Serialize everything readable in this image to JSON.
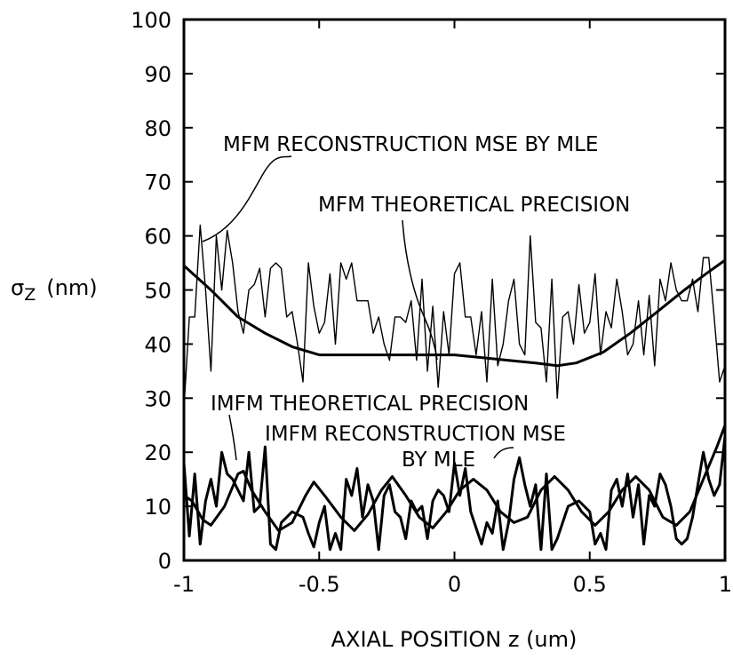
{
  "chart_data": {
    "type": "line",
    "xlabel": "AXIAL POSITION z (um)",
    "ylabel_symbol": "σ",
    "ylabel_subscript": "Z",
    "ylabel_unit": "(nm)",
    "xlim": [
      -1,
      1
    ],
    "ylim": [
      0,
      100
    ],
    "x_ticks": [
      -1,
      -0.5,
      0,
      0.5,
      1
    ],
    "x_tick_labels": [
      "-1",
      "-0.5",
      "0",
      "0.5",
      "1"
    ],
    "y_ticks": [
      0,
      10,
      20,
      30,
      40,
      50,
      60,
      70,
      80,
      90,
      100
    ],
    "y_tick_labels": [
      "0",
      "10",
      "20",
      "30",
      "40",
      "50",
      "60",
      "70",
      "80",
      "90",
      "100"
    ],
    "grid": false,
    "legend": "none",
    "annotations": {
      "mfm_mse": "MFM RECONSTRUCTION MSE BY MLE",
      "mfm_theory": "MFM THEORETICAL PRECISION",
      "imfm_theory": "IMFM THEORETICAL PRECISION",
      "imfm_mse_line1": "IMFM RECONSTRUCTION MSE",
      "imfm_mse_line2": "BY MLE"
    },
    "series": [
      {
        "key": "mfm_theory",
        "style": "thick",
        "points": [
          [
            -1,
            54.5
          ],
          [
            -0.9,
            50
          ],
          [
            -0.8,
            45
          ],
          [
            -0.7,
            42
          ],
          [
            -0.6,
            39.5
          ],
          [
            -0.5,
            38
          ],
          [
            -0.4,
            38
          ],
          [
            -0.2,
            38
          ],
          [
            0,
            38
          ],
          [
            0.1,
            37.5
          ],
          [
            0.2,
            37
          ],
          [
            0.3,
            36.5
          ],
          [
            0.38,
            36
          ],
          [
            0.45,
            36.5
          ],
          [
            0.55,
            38.5
          ],
          [
            0.65,
            42
          ],
          [
            0.75,
            46
          ],
          [
            0.85,
            50
          ],
          [
            0.93,
            53
          ],
          [
            1,
            55.5
          ]
        ]
      },
      {
        "key": "mfm_mse",
        "style": "thin",
        "points": [
          [
            -1,
            28
          ],
          [
            -0.98,
            45
          ],
          [
            -0.96,
            45
          ],
          [
            -0.94,
            62
          ],
          [
            -0.92,
            50
          ],
          [
            -0.9,
            35
          ],
          [
            -0.88,
            60
          ],
          [
            -0.86,
            50
          ],
          [
            -0.84,
            61
          ],
          [
            -0.82,
            55
          ],
          [
            -0.8,
            46
          ],
          [
            -0.78,
            42
          ],
          [
            -0.76,
            50
          ],
          [
            -0.74,
            51
          ],
          [
            -0.72,
            54
          ],
          [
            -0.7,
            45
          ],
          [
            -0.68,
            54
          ],
          [
            -0.66,
            55
          ],
          [
            -0.64,
            54
          ],
          [
            -0.62,
            45
          ],
          [
            -0.6,
            46
          ],
          [
            -0.58,
            40
          ],
          [
            -0.56,
            33
          ],
          [
            -0.54,
            55
          ],
          [
            -0.52,
            47
          ],
          [
            -0.5,
            42
          ],
          [
            -0.48,
            44
          ],
          [
            -0.46,
            53
          ],
          [
            -0.44,
            40
          ],
          [
            -0.42,
            55
          ],
          [
            -0.4,
            52
          ],
          [
            -0.38,
            55
          ],
          [
            -0.36,
            48
          ],
          [
            -0.34,
            48
          ],
          [
            -0.32,
            48
          ],
          [
            -0.3,
            42
          ],
          [
            -0.28,
            45
          ],
          [
            -0.26,
            40
          ],
          [
            -0.24,
            37
          ],
          [
            -0.22,
            45
          ],
          [
            -0.2,
            45
          ],
          [
            -0.18,
            44
          ],
          [
            -0.16,
            48
          ],
          [
            -0.14,
            37
          ],
          [
            -0.12,
            52
          ],
          [
            -0.1,
            35
          ],
          [
            -0.08,
            47
          ],
          [
            -0.06,
            32
          ],
          [
            -0.04,
            46
          ],
          [
            -0.02,
            38
          ],
          [
            0,
            53
          ],
          [
            0.02,
            55
          ],
          [
            0.04,
            45
          ],
          [
            0.06,
            45
          ],
          [
            0.08,
            38
          ],
          [
            0.1,
            46
          ],
          [
            0.12,
            33
          ],
          [
            0.14,
            52
          ],
          [
            0.16,
            36
          ],
          [
            0.18,
            40
          ],
          [
            0.2,
            48
          ],
          [
            0.22,
            52
          ],
          [
            0.24,
            40
          ],
          [
            0.26,
            38
          ],
          [
            0.28,
            60
          ],
          [
            0.3,
            44
          ],
          [
            0.32,
            43
          ],
          [
            0.34,
            33
          ],
          [
            0.36,
            52
          ],
          [
            0.38,
            30
          ],
          [
            0.4,
            45
          ],
          [
            0.42,
            46
          ],
          [
            0.44,
            40
          ],
          [
            0.46,
            51
          ],
          [
            0.48,
            42
          ],
          [
            0.5,
            44
          ],
          [
            0.52,
            53
          ],
          [
            0.54,
            38
          ],
          [
            0.56,
            46
          ],
          [
            0.58,
            43
          ],
          [
            0.6,
            52
          ],
          [
            0.62,
            46
          ],
          [
            0.64,
            38
          ],
          [
            0.66,
            40
          ],
          [
            0.68,
            48
          ],
          [
            0.7,
            38
          ],
          [
            0.72,
            49
          ],
          [
            0.74,
            36
          ],
          [
            0.76,
            52
          ],
          [
            0.78,
            48
          ],
          [
            0.8,
            55
          ],
          [
            0.82,
            50
          ],
          [
            0.84,
            48
          ],
          [
            0.86,
            48
          ],
          [
            0.88,
            52
          ],
          [
            0.9,
            46
          ],
          [
            0.92,
            56
          ],
          [
            0.94,
            56
          ],
          [
            0.96,
            45
          ],
          [
            0.98,
            33
          ],
          [
            1,
            36
          ]
        ]
      },
      {
        "key": "imfm_theory",
        "style": "thick",
        "points": [
          [
            -1,
            12
          ],
          [
            -0.97,
            11
          ],
          [
            -0.93,
            7.5
          ],
          [
            -0.9,
            6.5
          ],
          [
            -0.85,
            10
          ],
          [
            -0.8,
            16
          ],
          [
            -0.78,
            16.5
          ],
          [
            -0.75,
            13
          ],
          [
            -0.7,
            9
          ],
          [
            -0.65,
            5.5
          ],
          [
            -0.6,
            7
          ],
          [
            -0.55,
            12
          ],
          [
            -0.52,
            14.5
          ],
          [
            -0.48,
            12
          ],
          [
            -0.42,
            8
          ],
          [
            -0.37,
            5.5
          ],
          [
            -0.32,
            8.5
          ],
          [
            -0.27,
            13
          ],
          [
            -0.23,
            15.5
          ],
          [
            -0.18,
            12
          ],
          [
            -0.13,
            8
          ],
          [
            -0.08,
            6
          ],
          [
            -0.03,
            9
          ],
          [
            0.02,
            13
          ],
          [
            0.07,
            15
          ],
          [
            0.12,
            13
          ],
          [
            0.17,
            9
          ],
          [
            0.22,
            7
          ],
          [
            0.27,
            8
          ],
          [
            0.32,
            13
          ],
          [
            0.37,
            15.5
          ],
          [
            0.42,
            13
          ],
          [
            0.47,
            9
          ],
          [
            0.52,
            6.5
          ],
          [
            0.57,
            9
          ],
          [
            0.62,
            13
          ],
          [
            0.67,
            15.5
          ],
          [
            0.72,
            13
          ],
          [
            0.77,
            8
          ],
          [
            0.82,
            6.5
          ],
          [
            0.87,
            9
          ],
          [
            0.92,
            15
          ],
          [
            0.97,
            21
          ],
          [
            1,
            25
          ]
        ]
      },
      {
        "key": "imfm_mse",
        "style": "thick",
        "points": [
          [
            -1,
            18
          ],
          [
            -0.98,
            4.5
          ],
          [
            -0.96,
            16
          ],
          [
            -0.94,
            3
          ],
          [
            -0.92,
            11
          ],
          [
            -0.9,
            15
          ],
          [
            -0.88,
            10
          ],
          [
            -0.86,
            20
          ],
          [
            -0.84,
            16
          ],
          [
            -0.82,
            15
          ],
          [
            -0.8,
            13
          ],
          [
            -0.78,
            11
          ],
          [
            -0.76,
            20
          ],
          [
            -0.74,
            9
          ],
          [
            -0.72,
            10
          ],
          [
            -0.7,
            21
          ],
          [
            -0.68,
            3
          ],
          [
            -0.66,
            2
          ],
          [
            -0.64,
            7
          ],
          [
            -0.6,
            9
          ],
          [
            -0.56,
            8
          ],
          [
            -0.54,
            5
          ],
          [
            -0.52,
            2.5
          ],
          [
            -0.5,
            7
          ],
          [
            -0.48,
            10
          ],
          [
            -0.46,
            2
          ],
          [
            -0.44,
            5
          ],
          [
            -0.42,
            2
          ],
          [
            -0.4,
            15
          ],
          [
            -0.38,
            12
          ],
          [
            -0.36,
            17
          ],
          [
            -0.34,
            8
          ],
          [
            -0.32,
            14
          ],
          [
            -0.3,
            11
          ],
          [
            -0.28,
            2
          ],
          [
            -0.26,
            12
          ],
          [
            -0.24,
            14
          ],
          [
            -0.22,
            9
          ],
          [
            -0.2,
            8
          ],
          [
            -0.18,
            4
          ],
          [
            -0.16,
            11
          ],
          [
            -0.14,
            9
          ],
          [
            -0.12,
            10
          ],
          [
            -0.1,
            4
          ],
          [
            -0.08,
            11
          ],
          [
            -0.06,
            13
          ],
          [
            -0.04,
            12
          ],
          [
            -0.02,
            9
          ],
          [
            0,
            18
          ],
          [
            0.02,
            12
          ],
          [
            0.04,
            17
          ],
          [
            0.06,
            9
          ],
          [
            0.08,
            6
          ],
          [
            0.1,
            3
          ],
          [
            0.12,
            7
          ],
          [
            0.14,
            5
          ],
          [
            0.16,
            11
          ],
          [
            0.18,
            2
          ],
          [
            0.2,
            7
          ],
          [
            0.22,
            15
          ],
          [
            0.24,
            19
          ],
          [
            0.26,
            14
          ],
          [
            0.28,
            10
          ],
          [
            0.3,
            14
          ],
          [
            0.32,
            2
          ],
          [
            0.34,
            16
          ],
          [
            0.36,
            2
          ],
          [
            0.38,
            4
          ],
          [
            0.42,
            10
          ],
          [
            0.46,
            11
          ],
          [
            0.5,
            9
          ],
          [
            0.52,
            3
          ],
          [
            0.54,
            5
          ],
          [
            0.56,
            2
          ],
          [
            0.58,
            13
          ],
          [
            0.6,
            15
          ],
          [
            0.62,
            10
          ],
          [
            0.64,
            16
          ],
          [
            0.66,
            8
          ],
          [
            0.68,
            14
          ],
          [
            0.7,
            3
          ],
          [
            0.72,
            12
          ],
          [
            0.74,
            10
          ],
          [
            0.76,
            16
          ],
          [
            0.78,
            14
          ],
          [
            0.8,
            10
          ],
          [
            0.82,
            4
          ],
          [
            0.84,
            3
          ],
          [
            0.86,
            4
          ],
          [
            0.88,
            8
          ],
          [
            0.9,
            14
          ],
          [
            0.92,
            20
          ],
          [
            0.94,
            15
          ],
          [
            0.96,
            12
          ],
          [
            0.98,
            14
          ],
          [
            1,
            23
          ]
        ]
      }
    ]
  }
}
